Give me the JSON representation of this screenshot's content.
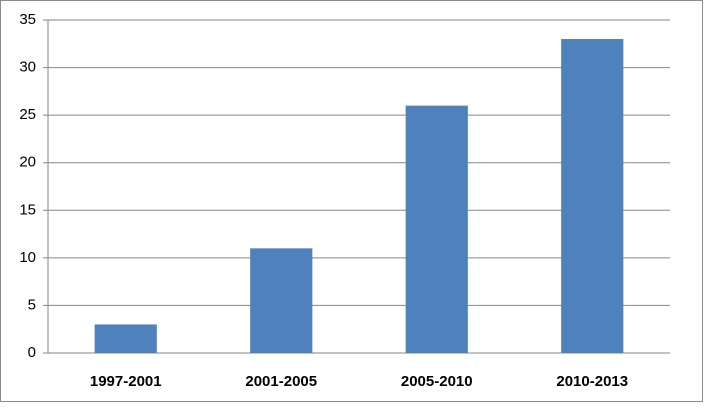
{
  "chart_data": {
    "type": "bar",
    "categories": [
      "1997-2001",
      "2001-2005",
      "2005-2010",
      "2010-2013"
    ],
    "values": [
      3,
      11,
      26,
      33
    ],
    "color": "#4f81bd",
    "ylim": [
      0,
      35
    ],
    "yticks": [
      0,
      5,
      10,
      15,
      20,
      25,
      30,
      35
    ],
    "grid": true
  }
}
